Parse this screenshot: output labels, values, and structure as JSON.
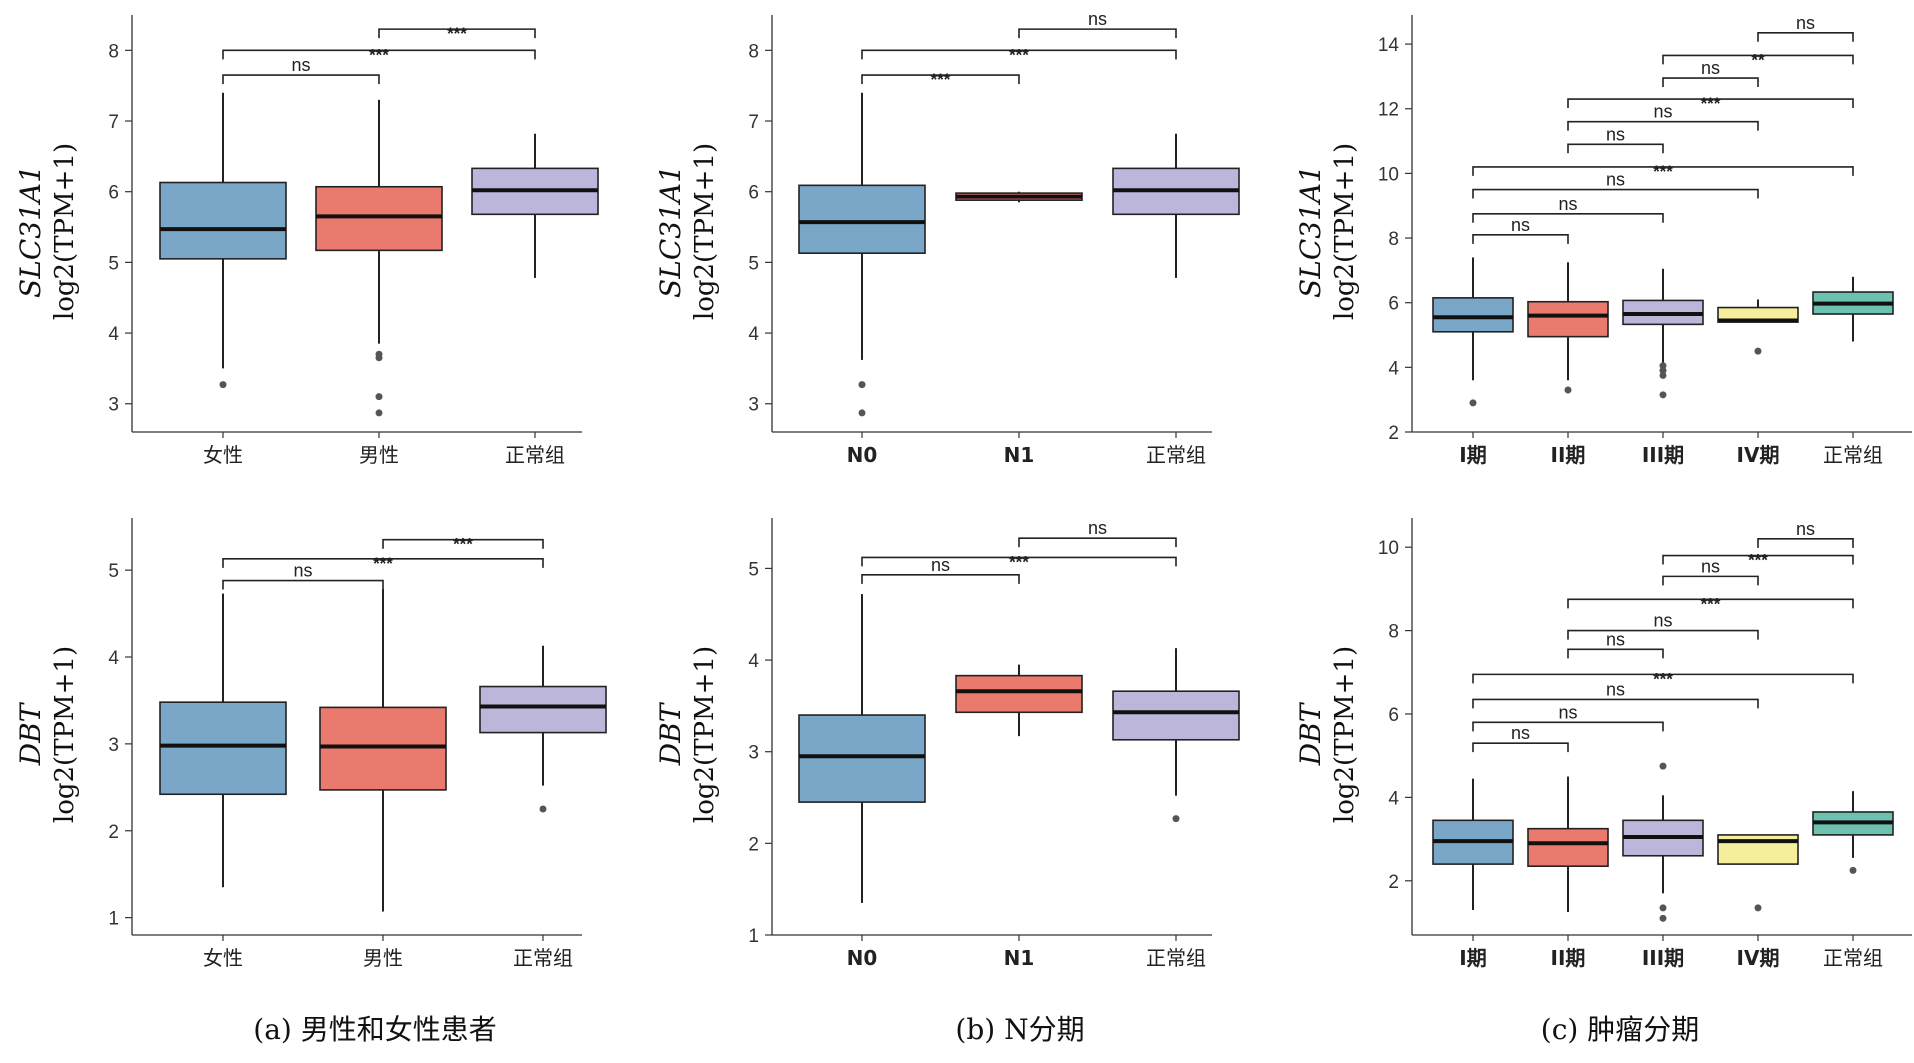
{
  "colors": {
    "blue": "#7aa6c8",
    "red": "#ea7a6d",
    "lavender": "#bcb7da",
    "yellow": "#f5ee9a",
    "teal": "#6cc2ae",
    "median": "#111111",
    "outlier": "#555555"
  },
  "captions": {
    "a": "(a) 男性和女性患者",
    "b": "(b) N分期",
    "c": "(c) 肿瘤分期"
  },
  "chart_data": [
    {
      "id": "a-top",
      "type": "boxplot",
      "ylabel_gene": "SLC31A1",
      "ylabel": "log2(TPM+1)",
      "ylim": [
        2.6,
        8.5
      ],
      "yticks": [
        3,
        4,
        5,
        6,
        7,
        8
      ],
      "categories": [
        "女性",
        "男性",
        "正常组"
      ],
      "boxes": [
        {
          "color": "blue",
          "whisker_low": 3.5,
          "q1": 5.05,
          "median": 5.47,
          "q3": 6.13,
          "whisker_high": 7.4,
          "outliers": [
            3.27
          ]
        },
        {
          "color": "red",
          "whisker_low": 3.85,
          "q1": 5.17,
          "median": 5.65,
          "q3": 6.07,
          "whisker_high": 7.3,
          "outliers": [
            3.65,
            3.7,
            3.1,
            2.87
          ]
        },
        {
          "color": "lavender",
          "whisker_low": 4.78,
          "q1": 5.68,
          "median": 6.02,
          "q3": 6.33,
          "whisker_high": 6.82,
          "outliers": []
        }
      ],
      "comparisons": [
        {
          "from": 1,
          "to": 2,
          "label": "***",
          "y": 8.3
        },
        {
          "from": 0,
          "to": 2,
          "label": "***",
          "y": 8.0
        },
        {
          "from": 0,
          "to": 1,
          "label": "ns",
          "y": 7.65
        }
      ]
    },
    {
      "id": "b-top",
      "type": "boxplot",
      "ylabel_gene": "SLC31A1",
      "ylabel": "log2(TPM+1)",
      "ylim": [
        2.6,
        8.5
      ],
      "yticks": [
        3,
        4,
        5,
        6,
        7,
        8
      ],
      "categories": [
        "N0",
        "N1",
        "正常组"
      ],
      "boxes": [
        {
          "color": "blue",
          "whisker_low": 3.62,
          "q1": 5.13,
          "median": 5.57,
          "q3": 6.09,
          "whisker_high": 7.4,
          "outliers": [
            3.27,
            2.87
          ]
        },
        {
          "color": "red",
          "whisker_low": 5.85,
          "q1": 5.88,
          "median": 5.93,
          "q3": 5.98,
          "whisker_high": 6.0,
          "outliers": []
        },
        {
          "color": "lavender",
          "whisker_low": 4.78,
          "q1": 5.68,
          "median": 6.02,
          "q3": 6.33,
          "whisker_high": 6.82,
          "outliers": []
        }
      ],
      "comparisons": [
        {
          "from": 1,
          "to": 2,
          "label": "ns",
          "y": 8.3
        },
        {
          "from": 0,
          "to": 2,
          "label": "***",
          "y": 8.0
        },
        {
          "from": 0,
          "to": 1,
          "label": "***",
          "y": 7.65
        }
      ]
    },
    {
      "id": "c-top",
      "type": "boxplot",
      "ylabel_gene": "SLC31A1",
      "ylabel": "log2(TPM+1)",
      "ylim": [
        2,
        14.9
      ],
      "yticks": [
        2,
        4,
        6,
        8,
        10,
        12,
        14
      ],
      "categories": [
        "I期",
        "II期",
        "III期",
        "IV期",
        "正常组"
      ],
      "boxes": [
        {
          "color": "blue",
          "whisker_low": 3.6,
          "q1": 5.1,
          "median": 5.55,
          "q3": 6.15,
          "whisker_high": 7.4,
          "outliers": [
            2.9
          ]
        },
        {
          "color": "red",
          "whisker_low": 3.6,
          "q1": 4.95,
          "median": 5.6,
          "q3": 6.03,
          "whisker_high": 7.25,
          "outliers": [
            3.3
          ]
        },
        {
          "color": "lavender",
          "whisker_low": 4.1,
          "q1": 5.33,
          "median": 5.65,
          "q3": 6.07,
          "whisker_high": 7.05,
          "outliers": [
            3.75,
            3.9,
            4.05,
            3.15
          ]
        },
        {
          "color": "yellow",
          "whisker_low": 5.4,
          "q1": 5.4,
          "median": 5.45,
          "q3": 5.85,
          "whisker_high": 6.1,
          "outliers": [
            4.5
          ]
        },
        {
          "color": "teal",
          "whisker_low": 4.8,
          "q1": 5.65,
          "median": 5.97,
          "q3": 6.33,
          "whisker_high": 6.8,
          "outliers": []
        }
      ],
      "comparisons": [
        {
          "from": 3,
          "to": 4,
          "label": "ns",
          "y": 14.35
        },
        {
          "from": 2,
          "to": 4,
          "label": "**",
          "y": 13.65
        },
        {
          "from": 2,
          "to": 3,
          "label": "ns",
          "y": 12.95
        },
        {
          "from": 1,
          "to": 4,
          "label": "***",
          "y": 12.3
        },
        {
          "from": 1,
          "to": 3,
          "label": "ns",
          "y": 11.6
        },
        {
          "from": 1,
          "to": 2,
          "label": "ns",
          "y": 10.9
        },
        {
          "from": 0,
          "to": 4,
          "label": "***",
          "y": 10.2
        },
        {
          "from": 0,
          "to": 3,
          "label": "ns",
          "y": 9.5
        },
        {
          "from": 0,
          "to": 2,
          "label": "ns",
          "y": 8.75
        },
        {
          "from": 0,
          "to": 1,
          "label": "ns",
          "y": 8.1
        }
      ]
    },
    {
      "id": "a-bottom",
      "type": "boxplot",
      "ylabel_gene": "DBT",
      "ylabel": "log2(TPM+1)",
      "ylim": [
        0.8,
        5.6
      ],
      "yticks": [
        1,
        2,
        3,
        4,
        5
      ],
      "categories": [
        "女性",
        "男性",
        "正常组"
      ],
      "boxes": [
        {
          "color": "blue",
          "whisker_low": 1.35,
          "q1": 2.42,
          "median": 2.98,
          "q3": 3.48,
          "whisker_high": 4.73,
          "outliers": []
        },
        {
          "color": "red",
          "whisker_low": 1.07,
          "q1": 2.47,
          "median": 2.97,
          "q3": 3.42,
          "whisker_high": 4.78,
          "outliers": []
        },
        {
          "color": "lavender",
          "whisker_low": 2.52,
          "q1": 3.13,
          "median": 3.43,
          "q3": 3.66,
          "whisker_high": 4.13,
          "outliers": [
            2.25
          ]
        }
      ],
      "comparisons": [
        {
          "from": 1,
          "to": 2,
          "label": "***",
          "y": 5.35
        },
        {
          "from": 0,
          "to": 2,
          "label": "***",
          "y": 5.13
        },
        {
          "from": 0,
          "to": 1,
          "label": "ns",
          "y": 4.88
        }
      ]
    },
    {
      "id": "b-bottom",
      "type": "boxplot",
      "ylabel_gene": "DBT",
      "ylabel": "log2(TPM+1)",
      "ylim": [
        1,
        5.55
      ],
      "yticks": [
        1,
        2,
        3,
        4,
        5
      ],
      "categories": [
        "N0",
        "N1",
        "正常组"
      ],
      "boxes": [
        {
          "color": "blue",
          "whisker_low": 1.35,
          "q1": 2.45,
          "median": 2.95,
          "q3": 3.4,
          "whisker_high": 4.72,
          "outliers": []
        },
        {
          "color": "red",
          "whisker_low": 3.17,
          "q1": 3.43,
          "median": 3.66,
          "q3": 3.83,
          "whisker_high": 3.95,
          "outliers": []
        },
        {
          "color": "lavender",
          "whisker_low": 2.52,
          "q1": 3.13,
          "median": 3.43,
          "q3": 3.66,
          "whisker_high": 4.13,
          "outliers": [
            2.27
          ]
        }
      ],
      "comparisons": [
        {
          "from": 1,
          "to": 2,
          "label": "ns",
          "y": 5.33
        },
        {
          "from": 0,
          "to": 2,
          "label": "***",
          "y": 5.12
        },
        {
          "from": 0,
          "to": 1,
          "label": "ns",
          "y": 4.93
        }
      ]
    },
    {
      "id": "c-bottom",
      "type": "boxplot",
      "ylabel_gene": "DBT",
      "ylabel": "log2(TPM+1)",
      "ylim": [
        0.7,
        10.7
      ],
      "yticks": [
        2,
        4,
        6,
        8,
        10
      ],
      "categories": [
        "I期",
        "II期",
        "III期",
        "IV期",
        "正常组"
      ],
      "boxes": [
        {
          "color": "blue",
          "whisker_low": 1.3,
          "q1": 2.4,
          "median": 2.95,
          "q3": 3.45,
          "whisker_high": 4.45,
          "outliers": []
        },
        {
          "color": "red",
          "whisker_low": 1.25,
          "q1": 2.35,
          "median": 2.9,
          "q3": 3.25,
          "whisker_high": 4.5,
          "outliers": []
        },
        {
          "color": "lavender",
          "whisker_low": 1.7,
          "q1": 2.6,
          "median": 3.05,
          "q3": 3.45,
          "whisker_high": 4.05,
          "outliers": [
            4.75,
            1.35,
            1.1
          ]
        },
        {
          "color": "yellow",
          "whisker_low": 2.4,
          "q1": 2.4,
          "median": 2.95,
          "q3": 3.1,
          "whisker_high": 3.1,
          "outliers": [
            1.35
          ]
        },
        {
          "color": "teal",
          "whisker_low": 2.55,
          "q1": 3.1,
          "median": 3.4,
          "q3": 3.65,
          "whisker_high": 4.15,
          "outliers": [
            2.25
          ]
        }
      ],
      "comparisons": [
        {
          "from": 3,
          "to": 4,
          "label": "ns",
          "y": 10.2
        },
        {
          "from": 2,
          "to": 4,
          "label": "***",
          "y": 9.8
        },
        {
          "from": 2,
          "to": 3,
          "label": "ns",
          "y": 9.3
        },
        {
          "from": 1,
          "to": 4,
          "label": "***",
          "y": 8.75
        },
        {
          "from": 1,
          "to": 3,
          "label": "ns",
          "y": 8.0
        },
        {
          "from": 1,
          "to": 2,
          "label": "ns",
          "y": 7.55
        },
        {
          "from": 0,
          "to": 4,
          "label": "***",
          "y": 6.95
        },
        {
          "from": 0,
          "to": 3,
          "label": "ns",
          "y": 6.35
        },
        {
          "from": 0,
          "to": 2,
          "label": "ns",
          "y": 5.8
        },
        {
          "from": 0,
          "to": 1,
          "label": "ns",
          "y": 5.3
        }
      ]
    }
  ]
}
